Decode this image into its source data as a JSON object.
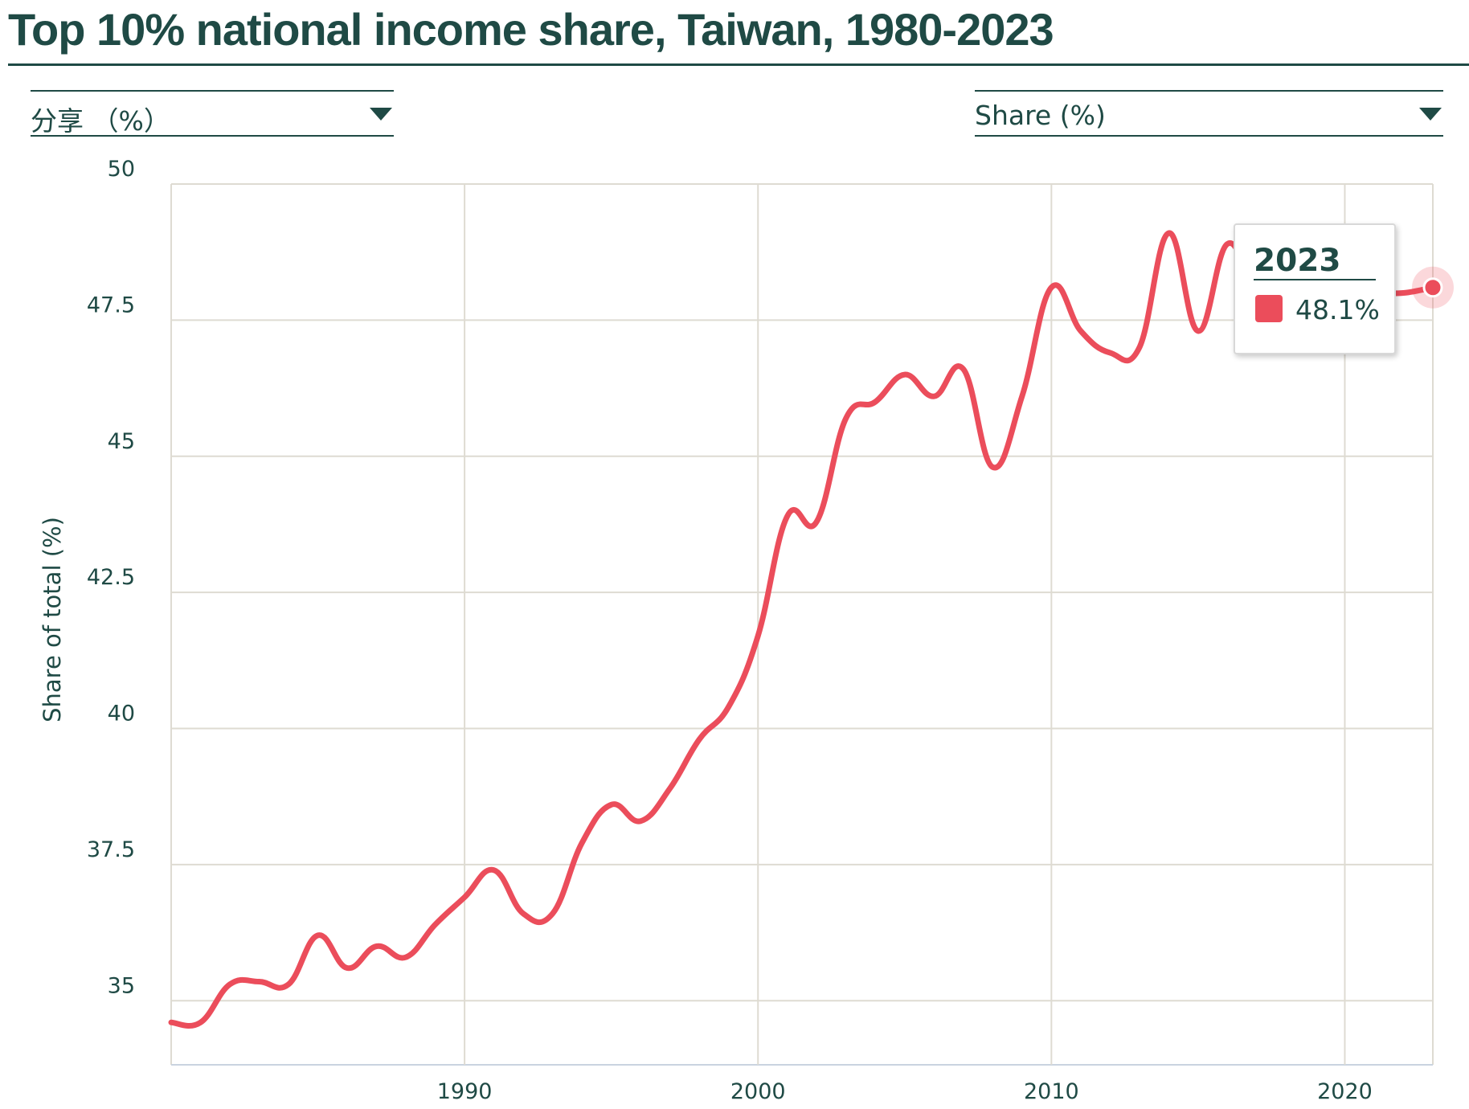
{
  "title": "Top 10% national income share, Taiwan, 1980-2023",
  "controls": {
    "left_dropdown": {
      "selected": "分享 （%）"
    },
    "right_dropdown": {
      "selected": "Share (%)"
    }
  },
  "tooltip": {
    "year": "2023",
    "value": "48.1%",
    "color": "#eb4d5b"
  },
  "colors": {
    "series": "#eb4d5b",
    "text": "#1f4a45",
    "grid": "#dedbd2"
  },
  "chart_data": {
    "type": "line",
    "title": "Top 10% national income share, Taiwan, 1980-2023",
    "xlabel": "",
    "ylabel": "Share of total (%)",
    "xlim": [
      1980,
      2023
    ],
    "ylim": [
      34,
      50
    ],
    "x_ticks": [
      1990,
      2000,
      2010,
      2020
    ],
    "y_ticks": [
      35,
      37.5,
      40,
      42.5,
      45,
      47.5,
      50
    ],
    "y_tick_labels": [
      "35",
      "37.5",
      "40",
      "42.5",
      "45",
      "47.5",
      "50"
    ],
    "grid": true,
    "series": [
      {
        "color": "#eb4d5b",
        "x": [
          1980,
          1981,
          1982,
          1983,
          1984,
          1985,
          1986,
          1987,
          1988,
          1989,
          1990,
          1991,
          1992,
          1993,
          1994,
          1995,
          1996,
          1997,
          1998,
          1999,
          2000,
          2001,
          2002,
          2003,
          2004,
          2005,
          2006,
          2007,
          2008,
          2009,
          2010,
          2011,
          2012,
          2013,
          2014,
          2015,
          2016,
          2017,
          2018,
          2019,
          2020,
          2021,
          2022,
          2023
        ],
        "y": [
          34.6,
          34.6,
          35.3,
          35.35,
          35.3,
          36.2,
          35.6,
          36.0,
          35.8,
          36.4,
          36.9,
          37.4,
          36.6,
          36.6,
          37.9,
          38.6,
          38.3,
          38.9,
          39.8,
          40.4,
          41.7,
          43.9,
          43.8,
          45.7,
          46.0,
          46.5,
          46.1,
          46.6,
          44.8,
          46.1,
          48.1,
          47.3,
          46.9,
          47.0,
          49.1,
          47.3,
          48.9,
          48.0,
          48.0,
          48.0,
          48.0,
          48.0,
          48.0,
          48.1
        ]
      }
    ]
  }
}
